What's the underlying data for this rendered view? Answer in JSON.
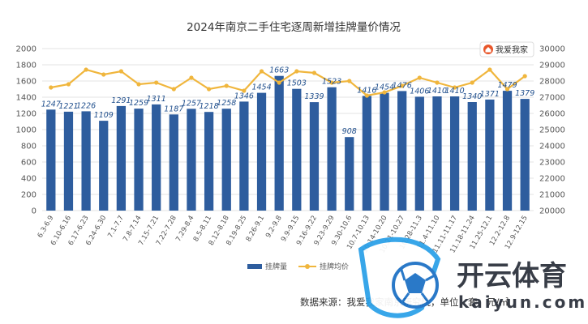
{
  "chart_data": {
    "type": "bar",
    "title": "2024年南京二手住宅逐周新增挂牌量价情况",
    "categories": [
      "6.3-6.9",
      "6.10-6.16",
      "6.17-6.23",
      "6.24-6.30",
      "7.1-7.7",
      "7.8-7.14",
      "7.15-7.21",
      "7.22-7.28",
      "7.29-8.4",
      "8.5-8.11",
      "8.12-8.18",
      "8.19-8.25",
      "8.26-9.1",
      "9.2-9.8",
      "9.9-9.15",
      "9.16-9.22",
      "9.23-9.29",
      "9.30-10.6",
      "10.7-10.13",
      "10.14-10.20",
      "10.21-10.27",
      "10.28-11.3",
      "11.4-11.10",
      "11.11-11.17",
      "11.18-11.24",
      "11.25-12.1",
      "12.2-12.8",
      "12.9-12.15"
    ],
    "series": [
      {
        "name": "挂牌量",
        "axis": "left",
        "type": "bar",
        "values": [
          1247,
          1221,
          1226,
          1109,
          1291,
          1259,
          1311,
          1187,
          1257,
          1218,
          1258,
          1346,
          1454,
          1663,
          1503,
          1339,
          1523,
          908,
          1416,
          1454,
          1476,
          1406,
          1410,
          1410,
          1340,
          1371,
          1479,
          1379
        ]
      },
      {
        "name": "挂牌均价",
        "axis": "right",
        "type": "line",
        "values": [
          27600,
          27800,
          28700,
          28400,
          28600,
          27800,
          27900,
          27500,
          28200,
          27500,
          27700,
          27400,
          28600,
          27900,
          28600,
          28500,
          27900,
          28000,
          27100,
          27300,
          27700,
          28200,
          27900,
          27600,
          27900,
          28700,
          27500,
          28300
        ]
      }
    ],
    "y_left": {
      "min": 0,
      "max": 2000,
      "step": 200,
      "ticks": [
        "0",
        "200",
        "400",
        "600",
        "800",
        "1000",
        "1200",
        "1400",
        "1600",
        "1800",
        "2000"
      ]
    },
    "y_right": {
      "min": 20000,
      "max": 30000,
      "step": 1000,
      "ticks": [
        "20000",
        "21000",
        "22000",
        "23000",
        "24000",
        "25000",
        "26000",
        "27000",
        "28000",
        "29000",
        "30000"
      ]
    },
    "legend_position": "bottom-center",
    "grid": true,
    "colors": {
      "bar": "#2e5d9e",
      "bar_dark": "#23487f",
      "line": "#f0b63d",
      "grid": "#e3e3e3"
    },
    "source": "数据来源：我爱我家南京研究院，单位：套、元/㎡"
  },
  "brand_badge": {
    "text": "我爱我家",
    "icon": "house-heart-icon"
  },
  "watermark": {
    "cn": "开云体育",
    "en": "kaiyun.com",
    "icon": "soccer-ball-icon"
  }
}
